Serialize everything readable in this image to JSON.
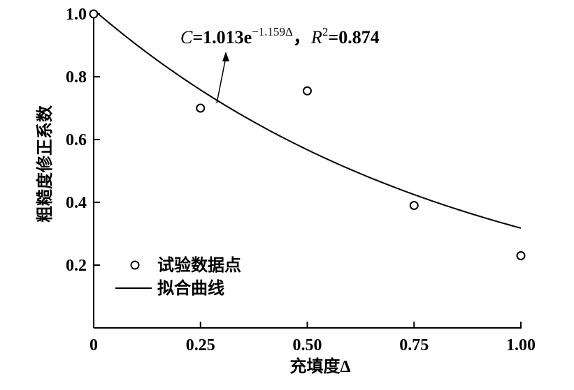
{
  "chart_data": {
    "type": "scatter",
    "xlabel": "充填度Δ",
    "ylabel": "粗糙度修正系数",
    "xlim": [
      0,
      1.0
    ],
    "ylim": [
      0,
      1.0
    ],
    "x_ticks": [
      "0",
      "0.25",
      "0.50",
      "0.75",
      "1.00"
    ],
    "x_tick_values": [
      0,
      0.25,
      0.5,
      0.75,
      1.0
    ],
    "y_ticks": [
      "0.2",
      "0.4",
      "0.6",
      "0.8",
      "1.0"
    ],
    "y_tick_values": [
      0.2,
      0.4,
      0.6,
      0.8,
      1.0
    ],
    "grid": false,
    "legend_position": "bottom-left",
    "series": [
      {
        "name": "试验数据点",
        "kind": "scatter",
        "marker": "open-circle",
        "x": [
          0,
          0.25,
          0.5,
          0.75,
          1.0
        ],
        "y": [
          1.0,
          0.7,
          0.755,
          0.39,
          0.23
        ]
      },
      {
        "name": "拟合曲线",
        "kind": "line",
        "equation": {
          "a": 1.013,
          "b": -1.159,
          "r2": 0.874
        }
      }
    ],
    "annotation": {
      "text_parts": {
        "C": "C",
        "eq": "=1.013e",
        "exp": "−1.159Δ",
        "sep": "，",
        "R": "R",
        "R_sup": "2",
        "r2": "=0.874"
      },
      "points_to_x": 0.29
    }
  }
}
